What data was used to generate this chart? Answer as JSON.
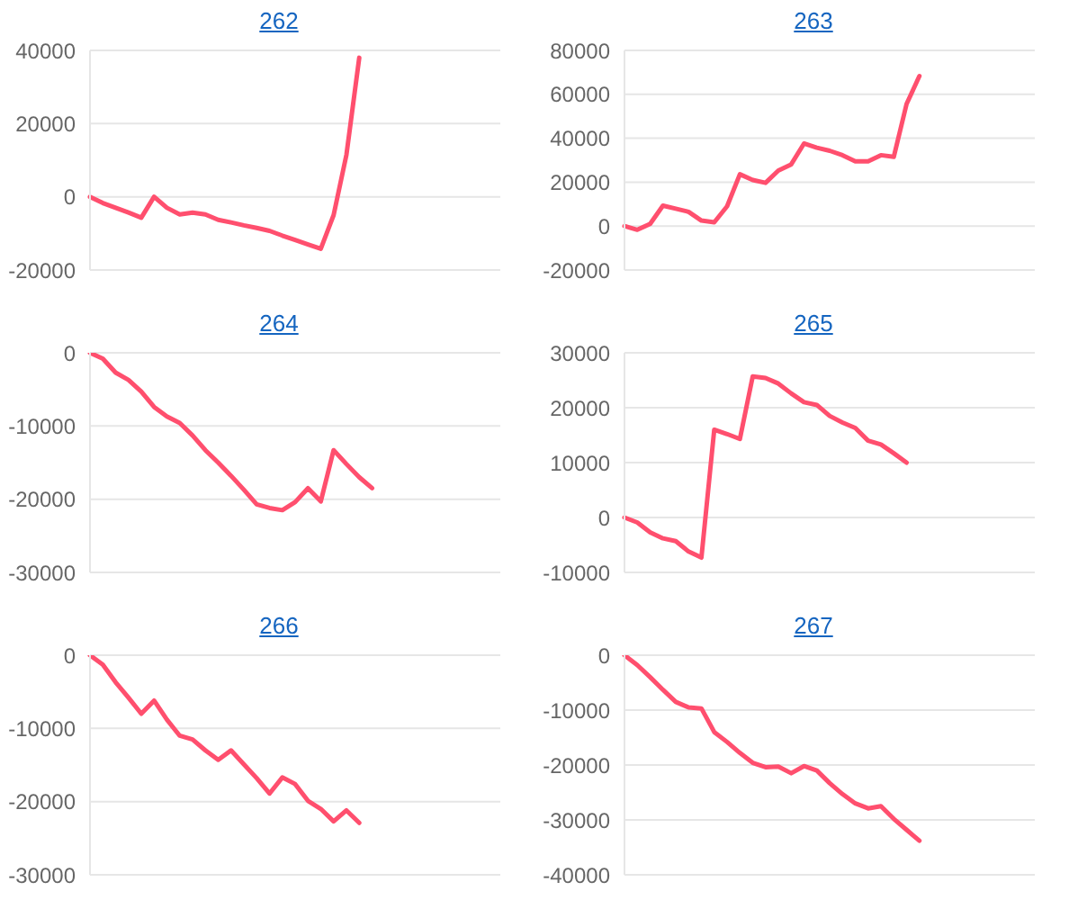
{
  "chart_data": [
    {
      "type": "line",
      "title": "262",
      "categories": [
        null,
        null,
        null,
        null,
        null,
        null,
        null,
        null,
        null,
        null,
        null,
        null,
        null,
        null,
        null,
        null,
        null,
        null,
        null,
        null,
        null,
        null,
        null,
        null,
        null,
        null,
        null,
        null,
        null,
        null,
        null,
        null,
        null
      ],
      "series": [
        {
          "color": "#ff4f6e",
          "values": [
            0,
            -1700,
            -3000,
            -4300,
            -5700,
            0,
            -3000,
            -4800,
            -4300,
            -4800,
            -6300,
            -7000,
            -7800,
            -8500,
            -9300,
            -10600,
            -11800,
            -13000,
            -14200,
            -5000,
            11500,
            38000,
            null,
            null,
            null,
            null,
            null,
            null,
            null,
            null,
            null,
            null,
            null
          ]
        }
      ],
      "ylim": [
        -20000,
        40000
      ],
      "yticks": [
        -20000,
        0,
        20000,
        40000
      ],
      "grid": "y",
      "marker": "none"
    },
    {
      "type": "line",
      "title": "263",
      "categories": [
        null,
        null,
        null,
        null,
        null,
        null,
        null,
        null,
        null,
        null,
        null,
        null,
        null,
        null,
        null,
        null,
        null,
        null,
        null,
        null,
        null,
        null,
        null,
        null,
        null,
        null,
        null,
        null,
        null,
        null,
        null,
        null,
        null
      ],
      "series": [
        {
          "color": "#ff4f6e",
          "values": [
            0,
            -1700,
            1000,
            9300,
            7900,
            6500,
            2500,
            1700,
            9000,
            23600,
            21000,
            19700,
            25300,
            28100,
            37600,
            35700,
            34300,
            32300,
            29500,
            29500,
            32300,
            31500,
            55600,
            68300,
            null,
            null,
            null,
            null,
            null,
            null,
            null,
            null,
            null
          ]
        }
      ],
      "ylim": [
        -20000,
        80000
      ],
      "yticks": [
        -20000,
        0,
        20000,
        40000,
        60000,
        80000
      ],
      "grid": "y",
      "marker": "none"
    },
    {
      "type": "line",
      "title": "264",
      "categories": [
        null,
        null,
        null,
        null,
        null,
        null,
        null,
        null,
        null,
        null,
        null,
        null,
        null,
        null,
        null,
        null,
        null,
        null,
        null,
        null,
        null,
        null,
        null,
        null,
        null,
        null,
        null,
        null,
        null,
        null,
        null,
        null,
        null
      ],
      "series": [
        {
          "color": "#ff4f6e",
          "values": [
            0,
            -800,
            -2700,
            -3700,
            -5300,
            -7400,
            -8700,
            -9600,
            -11300,
            -13300,
            -15000,
            -16800,
            -18700,
            -20700,
            -21200,
            -21500,
            -20400,
            -18500,
            -20300,
            -13300,
            -15200,
            -17000,
            -18500,
            null,
            null,
            null,
            null,
            null,
            null,
            null,
            null,
            null,
            null
          ]
        }
      ],
      "ylim": [
        -30000,
        0
      ],
      "yticks": [
        -30000,
        -20000,
        -10000,
        0
      ],
      "grid": "y",
      "marker": "none"
    },
    {
      "type": "line",
      "title": "265",
      "categories": [
        null,
        null,
        null,
        null,
        null,
        null,
        null,
        null,
        null,
        null,
        null,
        null,
        null,
        null,
        null,
        null,
        null,
        null,
        null,
        null,
        null,
        null,
        null,
        null,
        null,
        null,
        null,
        null,
        null,
        null,
        null,
        null,
        null
      ],
      "series": [
        {
          "color": "#ff4f6e",
          "values": [
            0,
            -900,
            -2700,
            -3800,
            -4300,
            -6200,
            -7300,
            16000,
            15200,
            14300,
            25700,
            25400,
            24400,
            22600,
            21000,
            20500,
            18500,
            17300,
            16300,
            14000,
            13300,
            11700,
            10000,
            null,
            null,
            null,
            null,
            null,
            null,
            null,
            null,
            null,
            null
          ]
        }
      ],
      "ylim": [
        -10000,
        30000
      ],
      "yticks": [
        -10000,
        0,
        10000,
        20000,
        30000
      ],
      "grid": "y",
      "marker": "none"
    },
    {
      "type": "line",
      "title": "266",
      "categories": [
        null,
        null,
        null,
        null,
        null,
        null,
        null,
        null,
        null,
        null,
        null,
        null,
        null,
        null,
        null,
        null,
        null,
        null,
        null,
        null,
        null,
        null,
        null,
        null,
        null,
        null,
        null,
        null,
        null,
        null,
        null,
        null,
        null
      ],
      "series": [
        {
          "color": "#ff4f6e",
          "values": [
            0,
            -1300,
            -3700,
            -5800,
            -8000,
            -6200,
            -8800,
            -11000,
            -11500,
            -13000,
            -14300,
            -13000,
            -14900,
            -16800,
            -18900,
            -16700,
            -17600,
            -19900,
            -21000,
            -22700,
            -21200,
            -22900,
            null,
            null,
            null,
            null,
            null,
            null,
            null,
            null,
            null,
            null,
            null
          ]
        }
      ],
      "ylim": [
        -30000,
        0
      ],
      "yticks": [
        -30000,
        -20000,
        -10000,
        0
      ],
      "grid": "y",
      "marker": "none"
    },
    {
      "type": "line",
      "title": "267",
      "categories": [
        null,
        null,
        null,
        null,
        null,
        null,
        null,
        null,
        null,
        null,
        null,
        null,
        null,
        null,
        null,
        null,
        null,
        null,
        null,
        null,
        null,
        null,
        null,
        null,
        null,
        null,
        null,
        null,
        null,
        null,
        null,
        null,
        null
      ],
      "series": [
        {
          "color": "#ff4f6e",
          "values": [
            0,
            -1800,
            -4000,
            -6300,
            -8500,
            -9500,
            -9700,
            -14000,
            -15800,
            -17800,
            -19600,
            -20400,
            -20300,
            -21500,
            -20200,
            -21000,
            -23300,
            -25300,
            -27000,
            -27900,
            -27500,
            -29800,
            -31800,
            -33800,
            null,
            null,
            null,
            null,
            null,
            null,
            null,
            null,
            null
          ]
        }
      ],
      "ylim": [
        -40000,
        0
      ],
      "yticks": [
        -40000,
        -30000,
        -20000,
        -10000,
        0
      ],
      "grid": "y",
      "marker": "none"
    }
  ]
}
